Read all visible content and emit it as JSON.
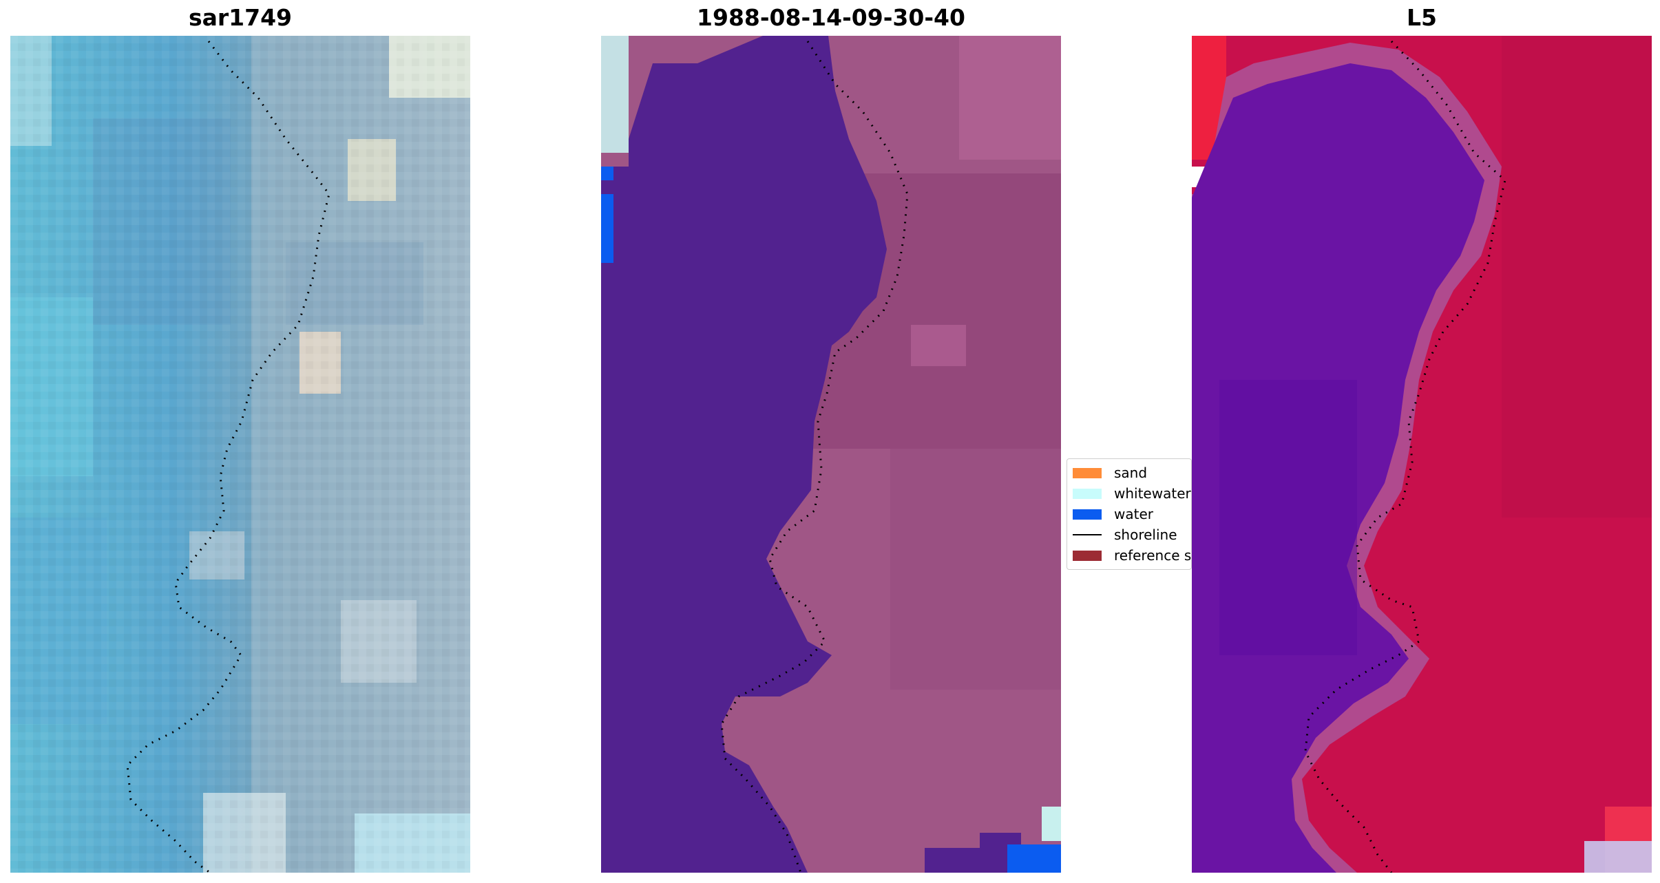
{
  "panels": [
    {
      "title": "sar1749"
    },
    {
      "title": "1988-08-14-09-30-40"
    },
    {
      "title": "L5"
    }
  ],
  "legend": {
    "items": [
      {
        "label": "sand",
        "color": "#ff8c38",
        "kind": "patch"
      },
      {
        "label": "whitewater",
        "color": "#c8fcfc",
        "kind": "patch"
      },
      {
        "label": "water",
        "color": "#0b5cf0",
        "kind": "patch"
      },
      {
        "label": "shoreline",
        "color": "#000000",
        "kind": "line"
      },
      {
        "label": "reference s",
        "color": "#9c2c34",
        "kind": "patch"
      }
    ]
  }
}
